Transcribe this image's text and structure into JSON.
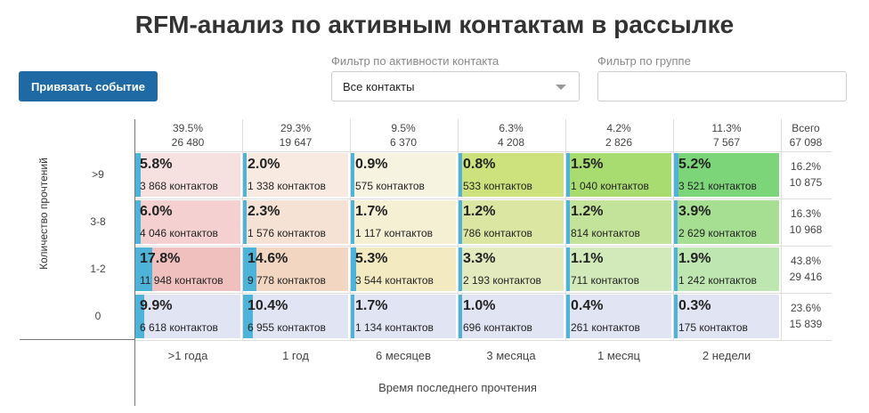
{
  "title": "RFM-анализ по активным контактам в рассылке",
  "bind_event_label": "Привязать событие",
  "activity_filter": {
    "label": "Фильтр по активности контакта",
    "value": "Все контакты"
  },
  "group_filter": {
    "label": "Фильтр по группе",
    "value": ""
  },
  "y_axis_label": "Количество прочтений",
  "x_axis_label": "Время последнего прочтения",
  "columns": [
    {
      "label": ">1 года",
      "pct": "39.5%",
      "count": "26 480"
    },
    {
      "label": "1 год",
      "pct": "29.3%",
      "count": "19 647"
    },
    {
      "label": "6 месяцев",
      "pct": "9.5%",
      "count": "6 370"
    },
    {
      "label": "3 месяца",
      "pct": "6.3%",
      "count": "4 208"
    },
    {
      "label": "1 месяц",
      "pct": "4.2%",
      "count": "2 826"
    },
    {
      "label": "2 недели",
      "pct": "11.3%",
      "count": "7 567"
    }
  ],
  "total_header": {
    "label": "Всего",
    "count": "67 098"
  },
  "rows": [
    {
      "label": ">9",
      "total_pct": "16.2%",
      "total_count": "10 875",
      "cells": [
        {
          "pct": "5.8%",
          "count": "3 868 контактов",
          "share": 0.058,
          "color": "#f7e1e0"
        },
        {
          "pct": "2.0%",
          "count": "1 338 контактов",
          "share": 0.02,
          "color": "#f8eae1"
        },
        {
          "pct": "0.9%",
          "count": "575 контактов",
          "share": 0.009,
          "color": "#f6f3e1"
        },
        {
          "pct": "0.8%",
          "count": "533 контактов",
          "share": 0.008,
          "color": "#cde17c"
        },
        {
          "pct": "1.5%",
          "count": "1 040 контактов",
          "share": 0.015,
          "color": "#a8dc70"
        },
        {
          "pct": "5.2%",
          "count": "3 521 контактов",
          "share": 0.052,
          "color": "#7dd57a"
        }
      ]
    },
    {
      "label": "3-8",
      "total_pct": "16.3%",
      "total_count": "10 968",
      "cells": [
        {
          "pct": "6.0%",
          "count": "4 046 контактов",
          "share": 0.06,
          "color": "#f4d1d0"
        },
        {
          "pct": "2.3%",
          "count": "1 576 контактов",
          "share": 0.023,
          "color": "#f5e2d5"
        },
        {
          "pct": "1.7%",
          "count": "1 117 контактов",
          "share": 0.017,
          "color": "#f5efd4"
        },
        {
          "pct": "1.2%",
          "count": "786 контактов",
          "share": 0.012,
          "color": "#dbe6a2"
        },
        {
          "pct": "1.2%",
          "count": "814 контактов",
          "share": 0.012,
          "color": "#c4e39a"
        },
        {
          "pct": "3.9%",
          "count": "2 629 контактов",
          "share": 0.039,
          "color": "#a6df91"
        }
      ]
    },
    {
      "label": "1-2",
      "total_pct": "43.8%",
      "total_count": "29 416",
      "cells": [
        {
          "pct": "17.8%",
          "count": "11 948 контактов",
          "share": 0.178,
          "color": "#f0c0be"
        },
        {
          "pct": "14.6%",
          "count": "9 778 контактов",
          "share": 0.146,
          "color": "#f2d6c1"
        },
        {
          "pct": "5.3%",
          "count": "3 544 контактов",
          "share": 0.053,
          "color": "#f3eac2"
        },
        {
          "pct": "3.3%",
          "count": "2 193 контактов",
          "share": 0.033,
          "color": "#e3eabd"
        },
        {
          "pct": "1.1%",
          "count": "711 контактов",
          "share": 0.011,
          "color": "#d2e9ba"
        },
        {
          "pct": "1.9%",
          "count": "1 242 контактов",
          "share": 0.019,
          "color": "#bde6b1"
        }
      ]
    },
    {
      "label": "0",
      "total_pct": "23.6%",
      "total_count": "15 839",
      "cells": [
        {
          "pct": "9.9%",
          "count": "6 618 контактов",
          "share": 0.099,
          "color": "#e1e4f3"
        },
        {
          "pct": "10.4%",
          "count": "6 955 контактов",
          "share": 0.104,
          "color": "#e1e4f3"
        },
        {
          "pct": "1.7%",
          "count": "1 134 контактов",
          "share": 0.017,
          "color": "#e1e4f3"
        },
        {
          "pct": "1.0%",
          "count": "696 контактов",
          "share": 0.01,
          "color": "#e1e4f3"
        },
        {
          "pct": "0.4%",
          "count": "261 контактов",
          "share": 0.004,
          "color": "#e1e4f3"
        },
        {
          "pct": "0.3%",
          "count": "175 контактов",
          "share": 0.003,
          "color": "#e1e4f3"
        }
      ]
    }
  ]
}
